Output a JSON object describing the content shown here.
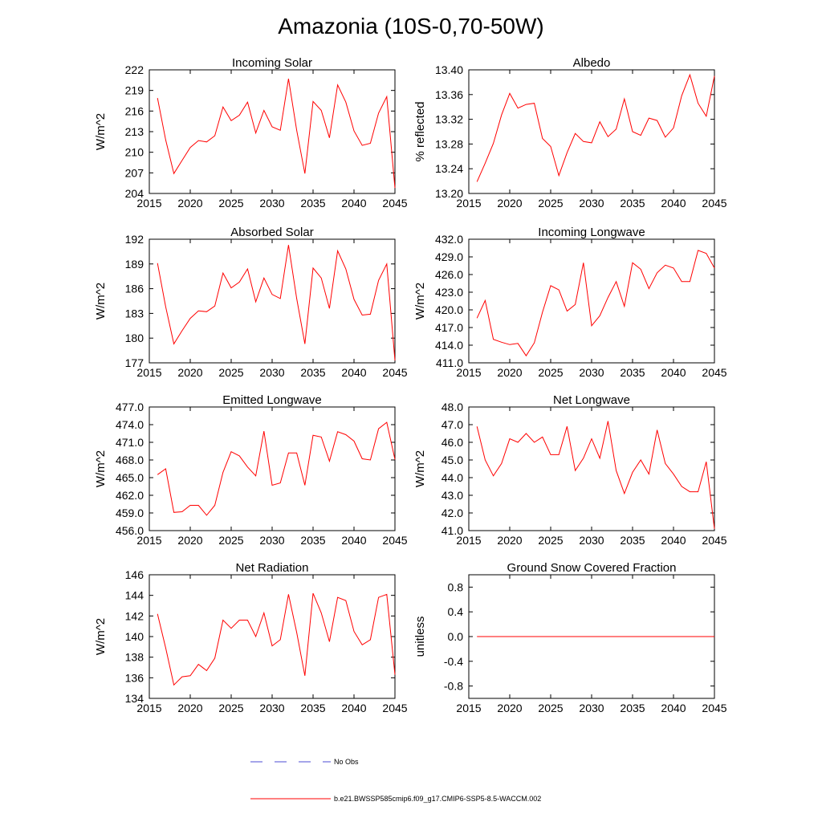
{
  "title": "Amazonia (10S-0,70-50W)",
  "colors": {
    "model": "#ff0000",
    "obs": "#4b4bd6",
    "axis": "#000000"
  },
  "legend": {
    "obs_label": "No Obs",
    "model_label": "b.e21.BWSSP585cmip6.f09_g17.CMIP6-SSP5-8.5-WACCM.002"
  },
  "chart_data": [
    {
      "type": "line",
      "title": "Incoming Solar",
      "ylabel": "W/m^2",
      "xlim": [
        2015,
        2045
      ],
      "ylim": [
        204,
        222
      ],
      "yticks": [
        204,
        207,
        210,
        213,
        216,
        219,
        222
      ],
      "ytick_labels": [
        "204",
        "207",
        "210",
        "213",
        "216",
        "219",
        "222"
      ],
      "xticks": [
        2015,
        2020,
        2025,
        2030,
        2035,
        2040,
        2045
      ],
      "xtick_labels": [
        "2015",
        "2020",
        "2025",
        "2030",
        "2035",
        "2040",
        "2045"
      ],
      "x": [
        2016,
        2017,
        2018,
        2019,
        2020,
        2021,
        2022,
        2023,
        2024,
        2025,
        2026,
        2027,
        2028,
        2029,
        2030,
        2031,
        2032,
        2033,
        2034,
        2035,
        2036,
        2037,
        2038,
        2039,
        2040,
        2041,
        2042,
        2043,
        2044,
        2045
      ],
      "series": [
        {
          "name": "model",
          "values": [
            217.9,
            211.8,
            206.9,
            208.8,
            210.7,
            211.7,
            211.5,
            212.4,
            216.6,
            214.6,
            215.4,
            217.3,
            212.8,
            216.1,
            213.7,
            213.2,
            220.7,
            213.2,
            206.9,
            217.4,
            216.1,
            212.1,
            219.8,
            217.3,
            213.1,
            211.0,
            211.3,
            215.7,
            218.1,
            204.8
          ]
        }
      ]
    },
    {
      "type": "line",
      "title": "Albedo",
      "ylabel": "% reflected",
      "xlim": [
        2015,
        2045
      ],
      "ylim": [
        13.2,
        13.4
      ],
      "yticks": [
        13.2,
        13.24,
        13.28,
        13.32,
        13.36,
        13.4
      ],
      "ytick_labels": [
        "13.20",
        "13.24",
        "13.28",
        "13.32",
        "13.36",
        "13.40"
      ],
      "xticks": [
        2015,
        2020,
        2025,
        2030,
        2035,
        2040,
        2045
      ],
      "xtick_labels": [
        "2015",
        "2020",
        "2025",
        "2030",
        "2035",
        "2040",
        "2045"
      ],
      "x": [
        2016,
        2017,
        2018,
        2019,
        2020,
        2021,
        2022,
        2023,
        2024,
        2025,
        2026,
        2027,
        2028,
        2029,
        2030,
        2031,
        2032,
        2033,
        2034,
        2035,
        2036,
        2037,
        2038,
        2039,
        2040,
        2041,
        2042,
        2043,
        2044,
        2045
      ],
      "series": [
        {
          "name": "model",
          "values": [
            13.219,
            13.249,
            13.281,
            13.327,
            13.362,
            13.338,
            13.344,
            13.346,
            13.289,
            13.276,
            13.229,
            13.266,
            13.297,
            13.284,
            13.282,
            13.316,
            13.292,
            13.304,
            13.353,
            13.3,
            13.294,
            13.322,
            13.318,
            13.291,
            13.306,
            13.358,
            13.392,
            13.346,
            13.325,
            13.39
          ]
        }
      ]
    },
    {
      "type": "line",
      "title": "Absorbed Solar",
      "ylabel": "W/m^2",
      "xlim": [
        2015,
        2045
      ],
      "ylim": [
        177,
        192
      ],
      "yticks": [
        177,
        180,
        183,
        186,
        189,
        192
      ],
      "ytick_labels": [
        "177",
        "180",
        "183",
        "186",
        "189",
        "192"
      ],
      "xticks": [
        2015,
        2020,
        2025,
        2030,
        2035,
        2040,
        2045
      ],
      "xtick_labels": [
        "2015",
        "2020",
        "2025",
        "2030",
        "2035",
        "2040",
        "2045"
      ],
      "x": [
        2016,
        2017,
        2018,
        2019,
        2020,
        2021,
        2022,
        2023,
        2024,
        2025,
        2026,
        2027,
        2028,
        2029,
        2030,
        2031,
        2032,
        2033,
        2034,
        2035,
        2036,
        2037,
        2038,
        2039,
        2040,
        2041,
        2042,
        2043,
        2044,
        2045
      ],
      "series": [
        {
          "name": "model",
          "values": [
            189.1,
            183.8,
            179.3,
            180.9,
            182.4,
            183.3,
            183.2,
            183.9,
            187.9,
            186.1,
            186.8,
            188.4,
            184.4,
            187.3,
            185.3,
            184.8,
            191.3,
            184.8,
            179.3,
            188.5,
            187.3,
            183.6,
            190.6,
            188.4,
            184.7,
            182.8,
            182.9,
            187.0,
            189.0,
            177.3
          ]
        }
      ]
    },
    {
      "type": "line",
      "title": "Incoming Longwave",
      "ylabel": "W/m^2",
      "xlim": [
        2015,
        2045
      ],
      "ylim": [
        411,
        432
      ],
      "yticks": [
        411,
        414,
        417,
        420,
        423,
        426,
        429,
        432
      ],
      "ytick_labels": [
        "411.0",
        "414.0",
        "417.0",
        "420.0",
        "423.0",
        "426.0",
        "429.0",
        "432.0"
      ],
      "xticks": [
        2015,
        2020,
        2025,
        2030,
        2035,
        2040,
        2045
      ],
      "xtick_labels": [
        "2015",
        "2020",
        "2025",
        "2030",
        "2035",
        "2040",
        "2045"
      ],
      "x": [
        2016,
        2017,
        2018,
        2019,
        2020,
        2021,
        2022,
        2023,
        2024,
        2025,
        2026,
        2027,
        2028,
        2029,
        2030,
        2031,
        2032,
        2033,
        2034,
        2035,
        2036,
        2037,
        2038,
        2039,
        2040,
        2041,
        2042,
        2043,
        2044,
        2045
      ],
      "series": [
        {
          "name": "model",
          "values": [
            418.6,
            421.6,
            415.0,
            414.5,
            414.1,
            414.3,
            412.2,
            414.4,
            419.6,
            424.1,
            423.4,
            419.8,
            420.9,
            428.0,
            417.3,
            419.0,
            422.1,
            424.8,
            420.6,
            428.0,
            426.9,
            423.6,
            426.3,
            427.6,
            427.1,
            424.8,
            424.8,
            430.1,
            429.6,
            427.1
          ]
        }
      ]
    },
    {
      "type": "line",
      "title": "Emitted Longwave",
      "ylabel": "W/m^2",
      "xlim": [
        2015,
        2045
      ],
      "ylim": [
        456,
        477
      ],
      "yticks": [
        456,
        459,
        462,
        465,
        468,
        471,
        474,
        477
      ],
      "ytick_labels": [
        "456.0",
        "459.0",
        "462.0",
        "465.0",
        "468.0",
        "471.0",
        "474.0",
        "477.0"
      ],
      "xticks": [
        2015,
        2020,
        2025,
        2030,
        2035,
        2040,
        2045
      ],
      "xtick_labels": [
        "2015",
        "2020",
        "2025",
        "2030",
        "2035",
        "2040",
        "2045"
      ],
      "x": [
        2016,
        2017,
        2018,
        2019,
        2020,
        2021,
        2022,
        2023,
        2024,
        2025,
        2026,
        2027,
        2028,
        2029,
        2030,
        2031,
        2032,
        2033,
        2034,
        2035,
        2036,
        2037,
        2038,
        2039,
        2040,
        2041,
        2042,
        2043,
        2044,
        2045
      ],
      "series": [
        {
          "name": "model",
          "values": [
            465.5,
            466.5,
            459.1,
            459.2,
            460.3,
            460.3,
            458.6,
            460.3,
            465.9,
            469.4,
            468.7,
            466.8,
            465.3,
            472.9,
            463.7,
            464.1,
            469.2,
            469.2,
            463.7,
            472.2,
            471.9,
            467.8,
            472.8,
            472.3,
            471.2,
            468.2,
            468.0,
            473.3,
            474.4,
            468.1
          ]
        }
      ]
    },
    {
      "type": "line",
      "title": "Net Longwave",
      "ylabel": "W/m^2",
      "xlim": [
        2015,
        2045
      ],
      "ylim": [
        41,
        48
      ],
      "yticks": [
        41,
        42,
        43,
        44,
        45,
        46,
        47,
        48
      ],
      "ytick_labels": [
        "41.0",
        "42.0",
        "43.0",
        "44.0",
        "45.0",
        "46.0",
        "47.0",
        "48.0"
      ],
      "xticks": [
        2015,
        2020,
        2025,
        2030,
        2035,
        2040,
        2045
      ],
      "xtick_labels": [
        "2015",
        "2020",
        "2025",
        "2030",
        "2035",
        "2040",
        "2045"
      ],
      "x": [
        2016,
        2017,
        2018,
        2019,
        2020,
        2021,
        2022,
        2023,
        2024,
        2025,
        2026,
        2027,
        2028,
        2029,
        2030,
        2031,
        2032,
        2033,
        2034,
        2035,
        2036,
        2037,
        2038,
        2039,
        2040,
        2041,
        2042,
        2043,
        2044,
        2045
      ],
      "series": [
        {
          "name": "model",
          "values": [
            46.9,
            45.0,
            44.1,
            44.8,
            46.2,
            46.0,
            46.5,
            46.0,
            46.3,
            45.3,
            45.3,
            46.9,
            44.4,
            45.1,
            46.2,
            45.1,
            47.2,
            44.4,
            43.1,
            44.3,
            45.0,
            44.2,
            46.7,
            44.8,
            44.2,
            43.5,
            43.2,
            43.2,
            44.9,
            41.1
          ]
        }
      ]
    },
    {
      "type": "line",
      "title": "Net Radiation",
      "ylabel": "W/m^2",
      "xlim": [
        2015,
        2045
      ],
      "ylim": [
        134,
        146
      ],
      "yticks": [
        134,
        136,
        138,
        140,
        142,
        144,
        146
      ],
      "ytick_labels": [
        "134",
        "136",
        "138",
        "140",
        "142",
        "144",
        "146"
      ],
      "xticks": [
        2015,
        2020,
        2025,
        2030,
        2035,
        2040,
        2045
      ],
      "xtick_labels": [
        "2015",
        "2020",
        "2025",
        "2030",
        "2035",
        "2040",
        "2045"
      ],
      "x": [
        2016,
        2017,
        2018,
        2019,
        2020,
        2021,
        2022,
        2023,
        2024,
        2025,
        2026,
        2027,
        2028,
        2029,
        2030,
        2031,
        2032,
        2033,
        2034,
        2035,
        2036,
        2037,
        2038,
        2039,
        2040,
        2041,
        2042,
        2043,
        2044,
        2045
      ],
      "series": [
        {
          "name": "model",
          "values": [
            142.2,
            138.9,
            135.3,
            136.1,
            136.2,
            137.3,
            136.7,
            137.9,
            141.6,
            140.8,
            141.6,
            141.6,
            140.0,
            142.3,
            139.1,
            139.7,
            144.1,
            140.4,
            136.2,
            144.2,
            142.3,
            139.5,
            143.8,
            143.5,
            140.5,
            139.2,
            139.7,
            143.8,
            144.1,
            136.3
          ]
        }
      ]
    },
    {
      "type": "line",
      "title": "Ground Snow Covered Fraction",
      "ylabel": "unitless",
      "xlim": [
        2015,
        2045
      ],
      "ylim": [
        -1.0,
        1.0
      ],
      "yticks": [
        -0.8,
        -0.4,
        0.0,
        0.4,
        0.8
      ],
      "ytick_labels": [
        "-0.8",
        "-0.4",
        "0.0",
        "0.4",
        "0.8"
      ],
      "xticks": [
        2015,
        2020,
        2025,
        2030,
        2035,
        2040,
        2045
      ],
      "xtick_labels": [
        "2015",
        "2020",
        "2025",
        "2030",
        "2035",
        "2040",
        "2045"
      ],
      "x": [
        2016,
        2045
      ],
      "series": [
        {
          "name": "model",
          "values": [
            0.0,
            0.0
          ]
        }
      ]
    }
  ]
}
